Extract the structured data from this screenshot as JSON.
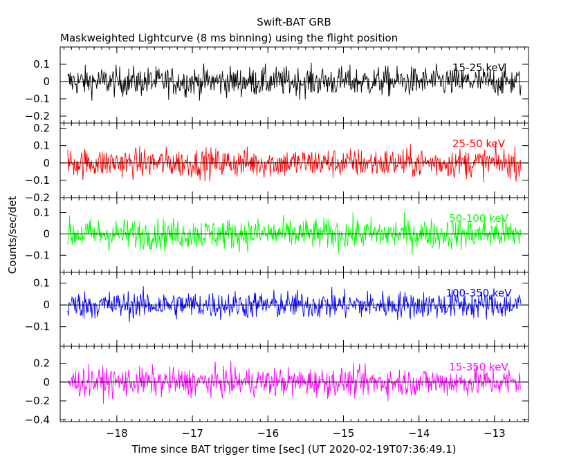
{
  "chart_data": {
    "type": "line",
    "title": "Swift-BAT GRB",
    "subtitle": "Maskweighted Lightcurve (8 ms binning) using the flight position",
    "xlabel": "Time since BAT trigger time [sec] (UT 2020-02-19T07:36:49.1)",
    "ylabel": "Counts/sec/det",
    "xlim": [
      -18.75,
      -12.55
    ],
    "x_range_data": [
      -18.65,
      -12.65
    ],
    "bin_width_sec": 0.008,
    "x_ticks": [
      -18,
      -17,
      -16,
      -15,
      -14,
      -13
    ],
    "x_tick_labels": [
      "−18",
      "−17",
      "−16",
      "−15",
      "−14",
      "−13"
    ],
    "grid": false,
    "panels": [
      {
        "band": "15-25 keV",
        "color": "#000000",
        "ylim": [
          -0.24,
          0.2
        ],
        "y_ticks": [
          -0.2,
          -0.1,
          0,
          0.1
        ],
        "y_tick_labels": [
          "−0.2",
          "−0.1",
          "0",
          "0.1"
        ],
        "noise_amplitude": 0.2
      },
      {
        "band": "25-50 keV",
        "color": "#ff0000",
        "ylim": [
          -0.2,
          0.23
        ],
        "y_ticks": [
          -0.2,
          -0.1,
          0,
          0.1,
          0.2
        ],
        "y_tick_labels": [
          "−0.2",
          "−0.1",
          "0",
          "0.1",
          "0.2"
        ],
        "noise_amplitude": 0.2
      },
      {
        "band": "50-100 keV",
        "color": "#00ff00",
        "ylim": [
          -0.18,
          0.17
        ],
        "y_ticks": [
          -0.1,
          0,
          0.1
        ],
        "y_tick_labels": [
          "−0.1",
          "0",
          "0.1"
        ],
        "noise_amplitude": 0.17
      },
      {
        "band": "100-350 keV",
        "color": "#0000ff",
        "ylim": [
          -0.19,
          0.15
        ],
        "y_ticks": [
          -0.1,
          0,
          0.1
        ],
        "y_tick_labels": [
          "−0.1",
          "0",
          "0.1"
        ],
        "noise_amplitude": 0.15
      },
      {
        "band": "15-350 keV",
        "color": "#ff00ff",
        "ylim": [
          -0.42,
          0.38
        ],
        "y_ticks": [
          -0.4,
          -0.2,
          0,
          0.2
        ],
        "y_tick_labels": [
          "−0.4",
          "−0.2",
          "0",
          "0.2"
        ],
        "noise_amplitude": 0.36
      }
    ]
  }
}
